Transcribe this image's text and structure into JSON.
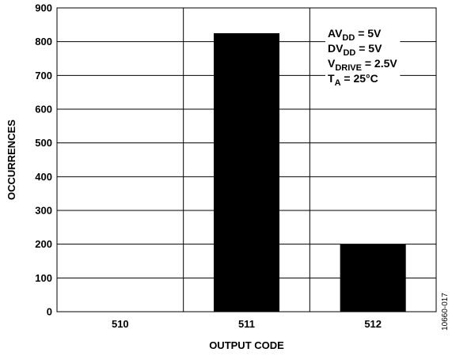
{
  "chart_data": {
    "type": "bar",
    "xlabel": "OUTPUT CODE",
    "ylabel": "OCCURRENCES",
    "categories": [
      "510",
      "511",
      "512"
    ],
    "values": [
      0,
      825,
      200
    ],
    "ylim": [
      0,
      900
    ],
    "yticks": [
      0,
      100,
      200,
      300,
      400,
      500,
      600,
      700,
      800,
      900
    ],
    "grid": true,
    "bar_color": "#000000",
    "annotation": {
      "lines": [
        {
          "main": "AV",
          "sub": "DD",
          "rest": " = 5V"
        },
        {
          "main": "DV",
          "sub": "DD",
          "rest": " = 5V"
        },
        {
          "main": "V",
          "sub": "DRIVE",
          "rest": " = 2.5V"
        },
        {
          "main": "T",
          "sub": "A",
          "rest": " = 25°C"
        }
      ]
    }
  },
  "figure_id": "10660-017"
}
